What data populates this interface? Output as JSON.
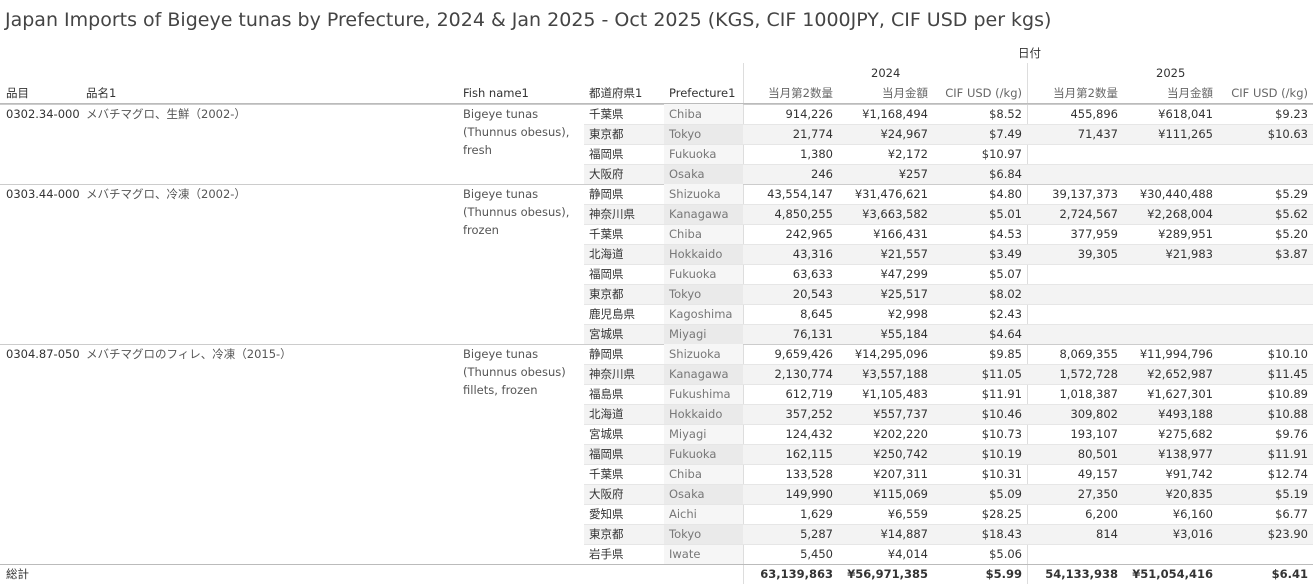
{
  "title": "Japan Imports of Bigeye tunas by Prefecture, 2024 & Jan 2025 - Oct 2025 (KGS, CIF 1000JPY, CIF USD per kgs)",
  "header": {
    "date": "日付",
    "years": [
      "2024",
      "2025"
    ],
    "columns": [
      "品目",
      "品名1",
      "Fish name1",
      "都道府県1",
      "Prefecture1"
    ],
    "measures": [
      "当月第2数量",
      "当月金額",
      "CIF USD (/kg)"
    ]
  },
  "groups": [
    {
      "code": "0302.34-000",
      "name": "メバチマグロ、生鮮（2002-）",
      "fish": [
        "Bigeye tunas",
        "(Thunnus obesus),",
        "fresh"
      ],
      "rows": [
        {
          "jp": "千葉県",
          "en": "Chiba",
          "y2024": [
            "914,226",
            "¥1,168,494",
            "$8.52"
          ],
          "y2025": [
            "455,896",
            "¥618,041",
            "$9.23"
          ]
        },
        {
          "jp": "東京都",
          "en": "Tokyo",
          "y2024": [
            "21,774",
            "¥24,967",
            "$7.49"
          ],
          "y2025": [
            "71,437",
            "¥111,265",
            "$10.63"
          ]
        },
        {
          "jp": "福岡県",
          "en": "Fukuoka",
          "y2024": [
            "1,380",
            "¥2,172",
            "$10.97"
          ]
        },
        {
          "jp": "大阪府",
          "en": "Osaka",
          "y2024": [
            "246",
            "¥257",
            "$6.84"
          ]
        }
      ]
    },
    {
      "code": "0303.44-000",
      "name": "メバチマグロ、冷凍（2002-）",
      "fish": [
        "Bigeye tunas",
        "(Thunnus obesus),",
        "frozen"
      ],
      "rows": [
        {
          "jp": "静岡県",
          "en": "Shizuoka",
          "y2024": [
            "43,554,147",
            "¥31,476,621",
            "$4.80"
          ],
          "y2025": [
            "39,137,373",
            "¥30,440,488",
            "$5.29"
          ]
        },
        {
          "jp": "神奈川県",
          "en": "Kanagawa",
          "y2024": [
            "4,850,255",
            "¥3,663,582",
            "$5.01"
          ],
          "y2025": [
            "2,724,567",
            "¥2,268,004",
            "$5.62"
          ]
        },
        {
          "jp": "千葉県",
          "en": "Chiba",
          "y2024": [
            "242,965",
            "¥166,431",
            "$4.53"
          ],
          "y2025": [
            "377,959",
            "¥289,951",
            "$5.20"
          ]
        },
        {
          "jp": "北海道",
          "en": "Hokkaido",
          "y2024": [
            "43,316",
            "¥21,557",
            "$3.49"
          ],
          "y2025": [
            "39,305",
            "¥21,983",
            "$3.87"
          ]
        },
        {
          "jp": "福岡県",
          "en": "Fukuoka",
          "y2024": [
            "63,633",
            "¥47,299",
            "$5.07"
          ]
        },
        {
          "jp": "東京都",
          "en": "Tokyo",
          "y2024": [
            "20,543",
            "¥25,517",
            "$8.02"
          ]
        },
        {
          "jp": "鹿児島県",
          "en": "Kagoshima",
          "y2024": [
            "8,645",
            "¥2,998",
            "$2.43"
          ]
        },
        {
          "jp": "宮城県",
          "en": "Miyagi",
          "y2024": [
            "76,131",
            "¥55,184",
            "$4.64"
          ]
        }
      ]
    },
    {
      "code": "0304.87-050",
      "name": "メバチマグロのフィレ、冷凍（2015-）",
      "fish": [
        "Bigeye tunas",
        "(Thunnus obesus)",
        "fillets, frozen"
      ],
      "rows": [
        {
          "jp": "静岡県",
          "en": "Shizuoka",
          "y2024": [
            "9,659,426",
            "¥14,295,096",
            "$9.85"
          ],
          "y2025": [
            "8,069,355",
            "¥11,994,796",
            "$10.10"
          ]
        },
        {
          "jp": "神奈川県",
          "en": "Kanagawa",
          "y2024": [
            "2,130,774",
            "¥3,557,188",
            "$11.05"
          ],
          "y2025": [
            "1,572,728",
            "¥2,652,987",
            "$11.45"
          ]
        },
        {
          "jp": "福島県",
          "en": "Fukushima",
          "y2024": [
            "612,719",
            "¥1,105,483",
            "$11.91"
          ],
          "y2025": [
            "1,018,387",
            "¥1,627,301",
            "$10.89"
          ]
        },
        {
          "jp": "北海道",
          "en": "Hokkaido",
          "y2024": [
            "357,252",
            "¥557,737",
            "$10.46"
          ],
          "y2025": [
            "309,802",
            "¥493,188",
            "$10.88"
          ]
        },
        {
          "jp": "宮城県",
          "en": "Miyagi",
          "y2024": [
            "124,432",
            "¥202,220",
            "$10.73"
          ],
          "y2025": [
            "193,107",
            "¥275,682",
            "$9.76"
          ]
        },
        {
          "jp": "福岡県",
          "en": "Fukuoka",
          "y2024": [
            "162,115",
            "¥250,742",
            "$10.19"
          ],
          "y2025": [
            "80,501",
            "¥138,977",
            "$11.91"
          ]
        },
        {
          "jp": "千葉県",
          "en": "Chiba",
          "y2024": [
            "133,528",
            "¥207,311",
            "$10.31"
          ],
          "y2025": [
            "49,157",
            "¥91,742",
            "$12.74"
          ]
        },
        {
          "jp": "大阪府",
          "en": "Osaka",
          "y2024": [
            "149,990",
            "¥115,069",
            "$5.09"
          ],
          "y2025": [
            "27,350",
            "¥20,835",
            "$5.19"
          ]
        },
        {
          "jp": "愛知県",
          "en": "Aichi",
          "y2024": [
            "1,629",
            "¥6,559",
            "$28.25"
          ],
          "y2025": [
            "6,200",
            "¥6,160",
            "$6.77"
          ]
        },
        {
          "jp": "東京都",
          "en": "Tokyo",
          "y2024": [
            "5,287",
            "¥14,887",
            "$18.43"
          ],
          "y2025": [
            "814",
            "¥3,016",
            "$23.90"
          ]
        },
        {
          "jp": "岩手県",
          "en": "Iwate",
          "y2024": [
            "5,450",
            "¥4,014",
            "$5.06"
          ]
        }
      ]
    }
  ],
  "total": {
    "label": "総計",
    "y2024": [
      "63,139,863",
      "¥56,971,385",
      "$5.99"
    ],
    "y2025": [
      "54,133,938",
      "¥51,054,416",
      "$6.41"
    ]
  }
}
